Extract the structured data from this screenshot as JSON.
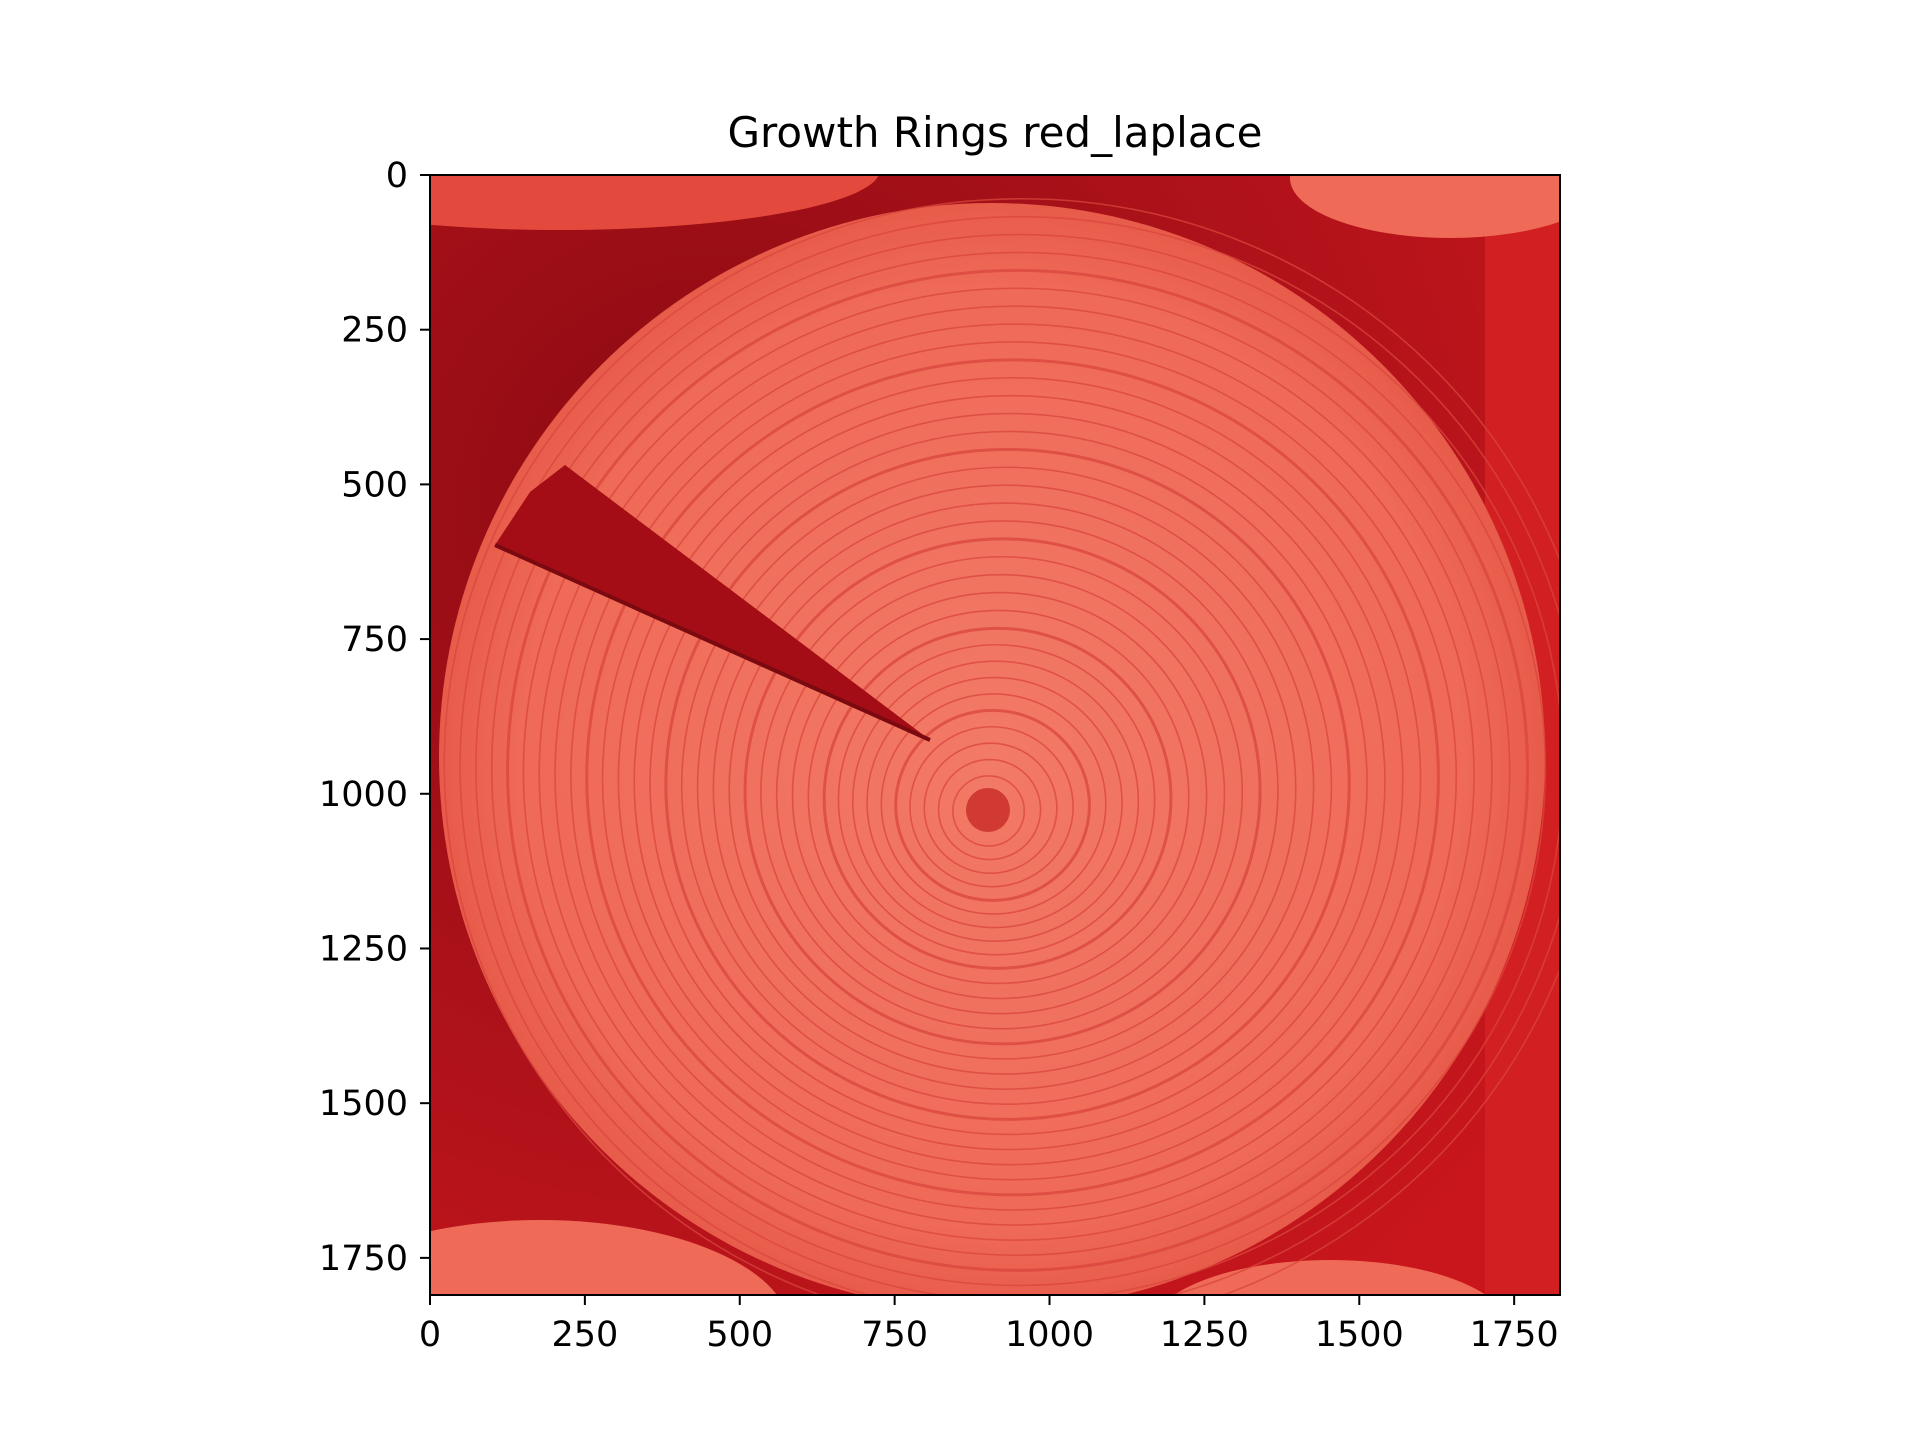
{
  "chart_data": {
    "type": "heatmap",
    "title": "Growth Rings red_laplace",
    "xlabel": "",
    "ylabel": "",
    "xlim": [
      0,
      1824
    ],
    "ylim": [
      1810,
      0
    ],
    "x_ticks": [
      0,
      250,
      500,
      750,
      1000,
      1250,
      1500,
      1750
    ],
    "y_ticks": [
      0,
      250,
      500,
      750,
      1000,
      1250,
      1500,
      1750
    ],
    "x_tick_labels": [
      "0",
      "250",
      "500",
      "750",
      "1000",
      "1250",
      "1500",
      "1750"
    ],
    "y_tick_labels": [
      "0",
      "250",
      "500",
      "750",
      "1000",
      "1250",
      "1500",
      "1750"
    ],
    "image_content": "red-tinted cross-section of a tree log with concentric growth rings and a radial crack",
    "pith_center": [
      900,
      1030
    ],
    "colors": {
      "dark": "#8a0a12",
      "mid": "#c8161c",
      "wood": "#ef6a57",
      "ring": "#d9463c",
      "light": "#f58a74"
    }
  }
}
